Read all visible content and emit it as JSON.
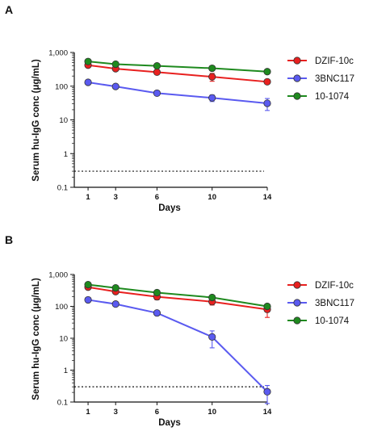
{
  "chart_data": [
    {
      "panel": "A",
      "type": "line",
      "ylabel": "Serum hu-IgG conc (μg/mL)",
      "xlabel": "Days",
      "yscale": "log",
      "ylim": [
        0.1,
        1000
      ],
      "yticks": [
        0.1,
        1,
        10,
        100,
        1000
      ],
      "ytick_labels": [
        "0.1",
        "1",
        "10",
        "100",
        "1,000"
      ],
      "xticks": [
        1,
        3,
        6,
        10,
        14
      ],
      "xlim": [
        0,
        14
      ],
      "reference_line_y": 0.3,
      "legend_position": "right",
      "series": [
        {
          "name": "DZIF-10c",
          "color": "#e8201f",
          "x": [
            1,
            3,
            6,
            10,
            14
          ],
          "y": [
            420,
            330,
            260,
            190,
            135
          ],
          "err": [
            40,
            40,
            30,
            50,
            15
          ]
        },
        {
          "name": "3BNC117",
          "color": "#5a5af0",
          "x": [
            1,
            3,
            6,
            10,
            14
          ],
          "y": [
            130,
            98,
            62,
            45,
            31
          ],
          "err": [
            8,
            6,
            6,
            10,
            12
          ]
        },
        {
          "name": "10-1074",
          "color": "#1f8a1f",
          "x": [
            1,
            3,
            6,
            10,
            14
          ],
          "y": [
            540,
            450,
            400,
            340,
            270
          ],
          "err": [
            30,
            20,
            20,
            20,
            20
          ]
        }
      ]
    },
    {
      "panel": "B",
      "type": "line",
      "ylabel": "Serum hu-IgG conc (μg/mL)",
      "xlabel": "Days",
      "yscale": "log",
      "ylim": [
        0.1,
        1000
      ],
      "yticks": [
        0.1,
        1,
        10,
        100,
        1000
      ],
      "ytick_labels": [
        "0.1",
        "1",
        "10",
        "100",
        "1,000"
      ],
      "xticks": [
        1,
        3,
        6,
        10,
        14
      ],
      "xlim": [
        0,
        14
      ],
      "reference_line_y": 0.3,
      "legend_position": "right",
      "series": [
        {
          "name": "DZIF-10c",
          "color": "#e8201f",
          "x": [
            1,
            3,
            6,
            10,
            14
          ],
          "y": [
            400,
            290,
            200,
            140,
            80
          ],
          "err": [
            60,
            40,
            40,
            30,
            35
          ]
        },
        {
          "name": "3BNC117",
          "color": "#5a5af0",
          "x": [
            1,
            3,
            6,
            10,
            14
          ],
          "y": [
            160,
            118,
            62,
            11,
            0.21
          ],
          "err": [
            10,
            8,
            6,
            6,
            0.12
          ]
        },
        {
          "name": "10-1074",
          "color": "#1f8a1f",
          "x": [
            1,
            3,
            6,
            10,
            14
          ],
          "y": [
            480,
            380,
            270,
            190,
            100
          ],
          "err": [
            30,
            30,
            20,
            20,
            10
          ]
        }
      ]
    }
  ]
}
